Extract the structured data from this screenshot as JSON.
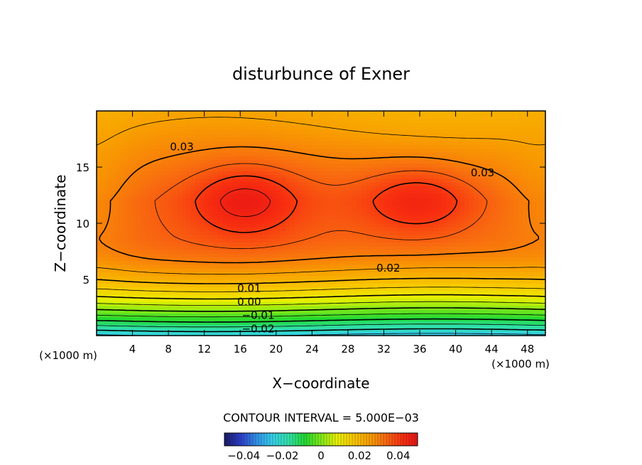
{
  "chart_data": {
    "type": "heatmap",
    "title": "disturbunce of Exner",
    "xlabel": "X−coordinate",
    "ylabel": "Z−coordinate",
    "x_unit_left": "(×1000 m)",
    "x_unit_right": "(×1000 m)",
    "xlim": [
      0,
      50
    ],
    "ylim": [
      0,
      20
    ],
    "xticks": [
      4,
      8,
      12,
      16,
      20,
      24,
      28,
      32,
      36,
      40,
      44,
      48
    ],
    "yticks": [
      5,
      10,
      15
    ],
    "contour_interval_text": "CONTOUR INTERVAL = 5.000E−03",
    "contour_interval": 0.005,
    "contour_labels": [
      {
        "text": "0.03",
        "x": 9.5,
        "z": 16.8
      },
      {
        "text": "0.03",
        "x": 43.0,
        "z": 14.5
      },
      {
        "text": "0.02",
        "x": 32.5,
        "z": 6.0
      },
      {
        "text": "0.01",
        "x": 17.0,
        "z": 4.2
      },
      {
        "text": "0.00",
        "x": 17.0,
        "z": 3.0
      },
      {
        "text": "−0.01",
        "x": 18.0,
        "z": 1.8
      },
      {
        "text": "−0.02",
        "x": 18.0,
        "z": 0.6
      }
    ],
    "field_range": [
      -0.05,
      0.05
    ],
    "colorbar_ticks": [
      {
        "value": -0.04,
        "label": "−0.04"
      },
      {
        "value": -0.02,
        "label": "−0.02"
      },
      {
        "value": 0,
        "label": "0"
      },
      {
        "value": 0.02,
        "label": "0.02"
      },
      {
        "value": 0.04,
        "label": "0.04"
      }
    ],
    "colormap": [
      "#1a1a66",
      "#2a3cc8",
      "#2f8fe8",
      "#34d0e8",
      "#30e0a8",
      "#20d830",
      "#80e818",
      "#e8f000",
      "#f8c800",
      "#f8a000",
      "#f86a10",
      "#f83010",
      "#e81414"
    ]
  }
}
